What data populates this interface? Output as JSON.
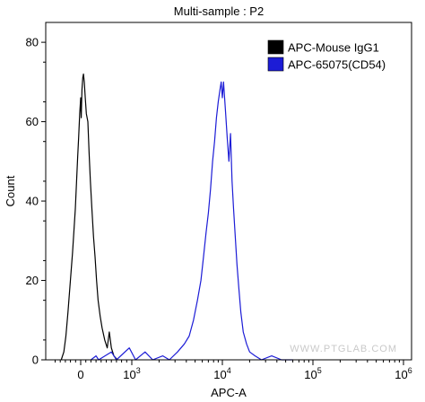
{
  "chart_data": {
    "type": "area",
    "title": "Multi-sample : P2",
    "xlabel": "APC-A",
    "ylabel": "Count",
    "x_scale": "biexponential",
    "xlim": [
      -600,
      1000000
    ],
    "ylim": [
      0,
      85
    ],
    "x_ticks": [
      {
        "value": 0,
        "base": "0",
        "exp": ""
      },
      {
        "value": 1000,
        "base": "10",
        "exp": "3"
      },
      {
        "value": 10000,
        "base": "10",
        "exp": "4"
      },
      {
        "value": 100000,
        "base": "10",
        "exp": "5"
      },
      {
        "value": 1000000,
        "base": "10",
        "exp": "6"
      }
    ],
    "y_ticks": [
      0,
      20,
      40,
      60,
      80
    ],
    "legend": {
      "position": "top-right"
    },
    "series": [
      {
        "name": "APC-Mouse IgG1",
        "color": "#000000",
        "points": [
          [
            -380,
            0
          ],
          [
            -330,
            2
          ],
          [
            -290,
            6
          ],
          [
            -250,
            12
          ],
          [
            -220,
            17
          ],
          [
            -190,
            22
          ],
          [
            -160,
            27
          ],
          [
            -130,
            33
          ],
          [
            -105,
            38
          ],
          [
            -80,
            45
          ],
          [
            -60,
            51
          ],
          [
            -40,
            56
          ],
          [
            -20,
            62
          ],
          [
            0,
            66
          ],
          [
            10,
            61
          ],
          [
            25,
            68
          ],
          [
            40,
            71
          ],
          [
            55,
            72
          ],
          [
            70,
            70
          ],
          [
            90,
            66
          ],
          [
            110,
            62
          ],
          [
            140,
            60
          ],
          [
            165,
            52
          ],
          [
            190,
            45
          ],
          [
            220,
            38
          ],
          [
            250,
            31
          ],
          [
            280,
            26
          ],
          [
            310,
            20
          ],
          [
            340,
            15
          ],
          [
            380,
            11
          ],
          [
            420,
            8
          ],
          [
            470,
            5
          ],
          [
            520,
            3
          ],
          [
            560,
            7
          ],
          [
            600,
            3
          ],
          [
            650,
            1
          ],
          [
            720,
            0
          ]
        ]
      },
      {
        "name": "APC-65075(CD54)",
        "color": "#1c1cd6",
        "points": [
          [
            200,
            0
          ],
          [
            300,
            1
          ],
          [
            350,
            0
          ],
          [
            600,
            2
          ],
          [
            700,
            0
          ],
          [
            950,
            3
          ],
          [
            1100,
            0
          ],
          [
            1400,
            2
          ],
          [
            1700,
            0
          ],
          [
            2200,
            1
          ],
          [
            2600,
            0
          ],
          [
            3200,
            2
          ],
          [
            3800,
            4
          ],
          [
            4300,
            6
          ],
          [
            4800,
            10
          ],
          [
            5300,
            15
          ],
          [
            5800,
            20
          ],
          [
            6200,
            26
          ],
          [
            6600,
            32
          ],
          [
            7000,
            37
          ],
          [
            7400,
            43
          ],
          [
            7800,
            50
          ],
          [
            8200,
            55
          ],
          [
            8600,
            61
          ],
          [
            9000,
            65
          ],
          [
            9400,
            68
          ],
          [
            9700,
            70
          ],
          [
            10000,
            66
          ],
          [
            10300,
            70
          ],
          [
            10800,
            63
          ],
          [
            11300,
            56
          ],
          [
            11800,
            50
          ],
          [
            12300,
            57
          ],
          [
            12800,
            45
          ],
          [
            13300,
            38
          ],
          [
            13900,
            31
          ],
          [
            14500,
            24
          ],
          [
            15200,
            18
          ],
          [
            16000,
            12
          ],
          [
            17000,
            7
          ],
          [
            18500,
            4
          ],
          [
            20000,
            2
          ],
          [
            23000,
            1
          ],
          [
            27000,
            0
          ],
          [
            35000,
            1
          ],
          [
            45000,
            0
          ],
          [
            60000,
            0
          ]
        ]
      }
    ]
  },
  "watermark": "WWW.PTGLAB.COM"
}
